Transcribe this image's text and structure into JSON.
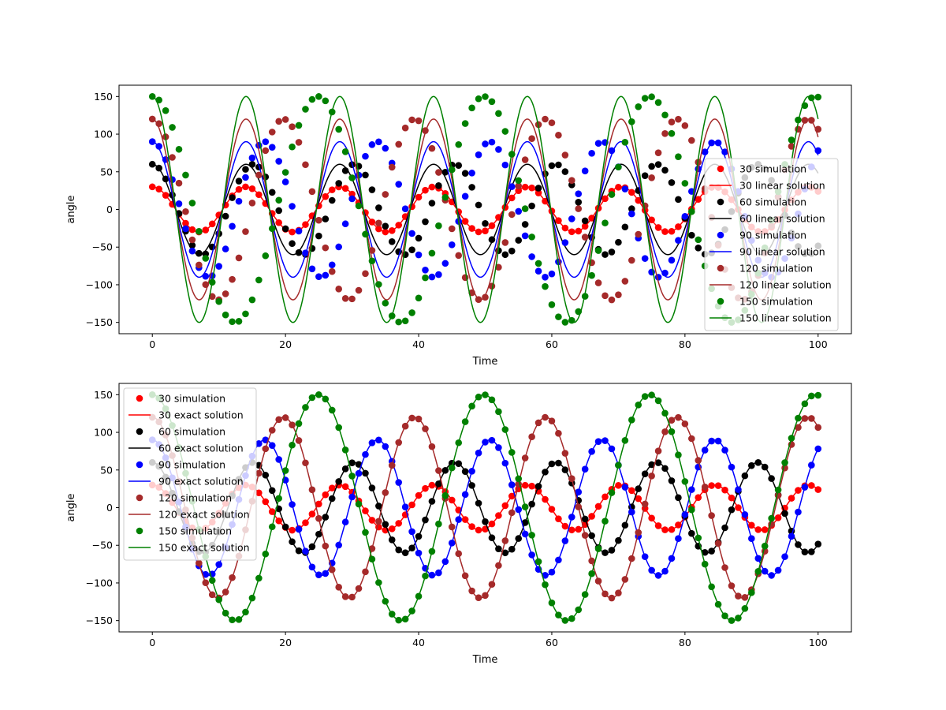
{
  "chart_data": [
    {
      "type": "line",
      "xlabel": "Time",
      "ylabel": "angle",
      "xlim": [
        -5,
        105
      ],
      "ylim": [
        -165,
        165
      ],
      "xticks": [
        0,
        20,
        40,
        60,
        80,
        100
      ],
      "yticks": [
        -150,
        -100,
        -50,
        0,
        50,
        100,
        150
      ],
      "x_tick_labels": [
        "0",
        "20",
        "40",
        "60",
        "80",
        "100"
      ],
      "y_tick_labels": [
        "−150",
        "−100",
        "−50",
        "0",
        "50",
        "100",
        "150"
      ],
      "legend_position": "lower right",
      "marker_time_step": 1,
      "series": [
        {
          "amplitude": 30,
          "color": "#ff0000",
          "linear_period": 14.08,
          "simulation_period": 14.08,
          "simulation_label": "30 simulation",
          "solution_label": "30 linear solution"
        },
        {
          "amplitude": 60,
          "color": "#000000",
          "linear_period": 14.08,
          "simulation_period": 15.15,
          "simulation_label": "60 simulation",
          "solution_label": "60 linear solution"
        },
        {
          "amplitude": 90,
          "color": "#0000ff",
          "linear_period": 14.08,
          "simulation_period": 16.9,
          "simulation_label": "90 simulation",
          "solution_label": "90 linear solution"
        },
        {
          "amplitude": 120,
          "color": "#a52a2a",
          "linear_period": 14.08,
          "simulation_period": 19.7,
          "simulation_label": "120 simulation",
          "solution_label": "120 linear solution"
        },
        {
          "amplitude": 150,
          "color": "#008000",
          "linear_period": 14.08,
          "simulation_period": 24.9,
          "simulation_label": "150 simulation",
          "solution_label": "150 linear solution"
        }
      ]
    },
    {
      "type": "line",
      "xlabel": "Time",
      "ylabel": "angle",
      "xlim": [
        -5,
        105
      ],
      "ylim": [
        -165,
        165
      ],
      "xticks": [
        0,
        20,
        40,
        60,
        80,
        100
      ],
      "yticks": [
        -150,
        -100,
        -50,
        0,
        50,
        100,
        150
      ],
      "x_tick_labels": [
        "0",
        "20",
        "40",
        "60",
        "80",
        "100"
      ],
      "y_tick_labels": [
        "−150",
        "−100",
        "−50",
        "0",
        "50",
        "100",
        "150"
      ],
      "legend_position": "upper left",
      "marker_time_step": 1,
      "series": [
        {
          "amplitude": 30,
          "color": "#ff0000",
          "exact_period": 14.08,
          "simulation_period": 14.08,
          "simulation_label": "30 simulation",
          "solution_label": "30 exact solution"
        },
        {
          "amplitude": 60,
          "color": "#000000",
          "exact_period": 15.15,
          "simulation_period": 15.15,
          "simulation_label": "60 simulation",
          "solution_label": "60 exact solution"
        },
        {
          "amplitude": 90,
          "color": "#0000ff",
          "exact_period": 16.9,
          "simulation_period": 16.9,
          "simulation_label": "90 simulation",
          "solution_label": "90 exact solution"
        },
        {
          "amplitude": 120,
          "color": "#a52a2a",
          "exact_period": 19.7,
          "simulation_period": 19.7,
          "simulation_label": "120 simulation",
          "solution_label": "120 exact solution"
        },
        {
          "amplitude": 150,
          "color": "#008000",
          "exact_period": 24.9,
          "simulation_period": 24.9,
          "simulation_label": "150 simulation",
          "solution_label": "150 exact solution"
        }
      ]
    }
  ]
}
